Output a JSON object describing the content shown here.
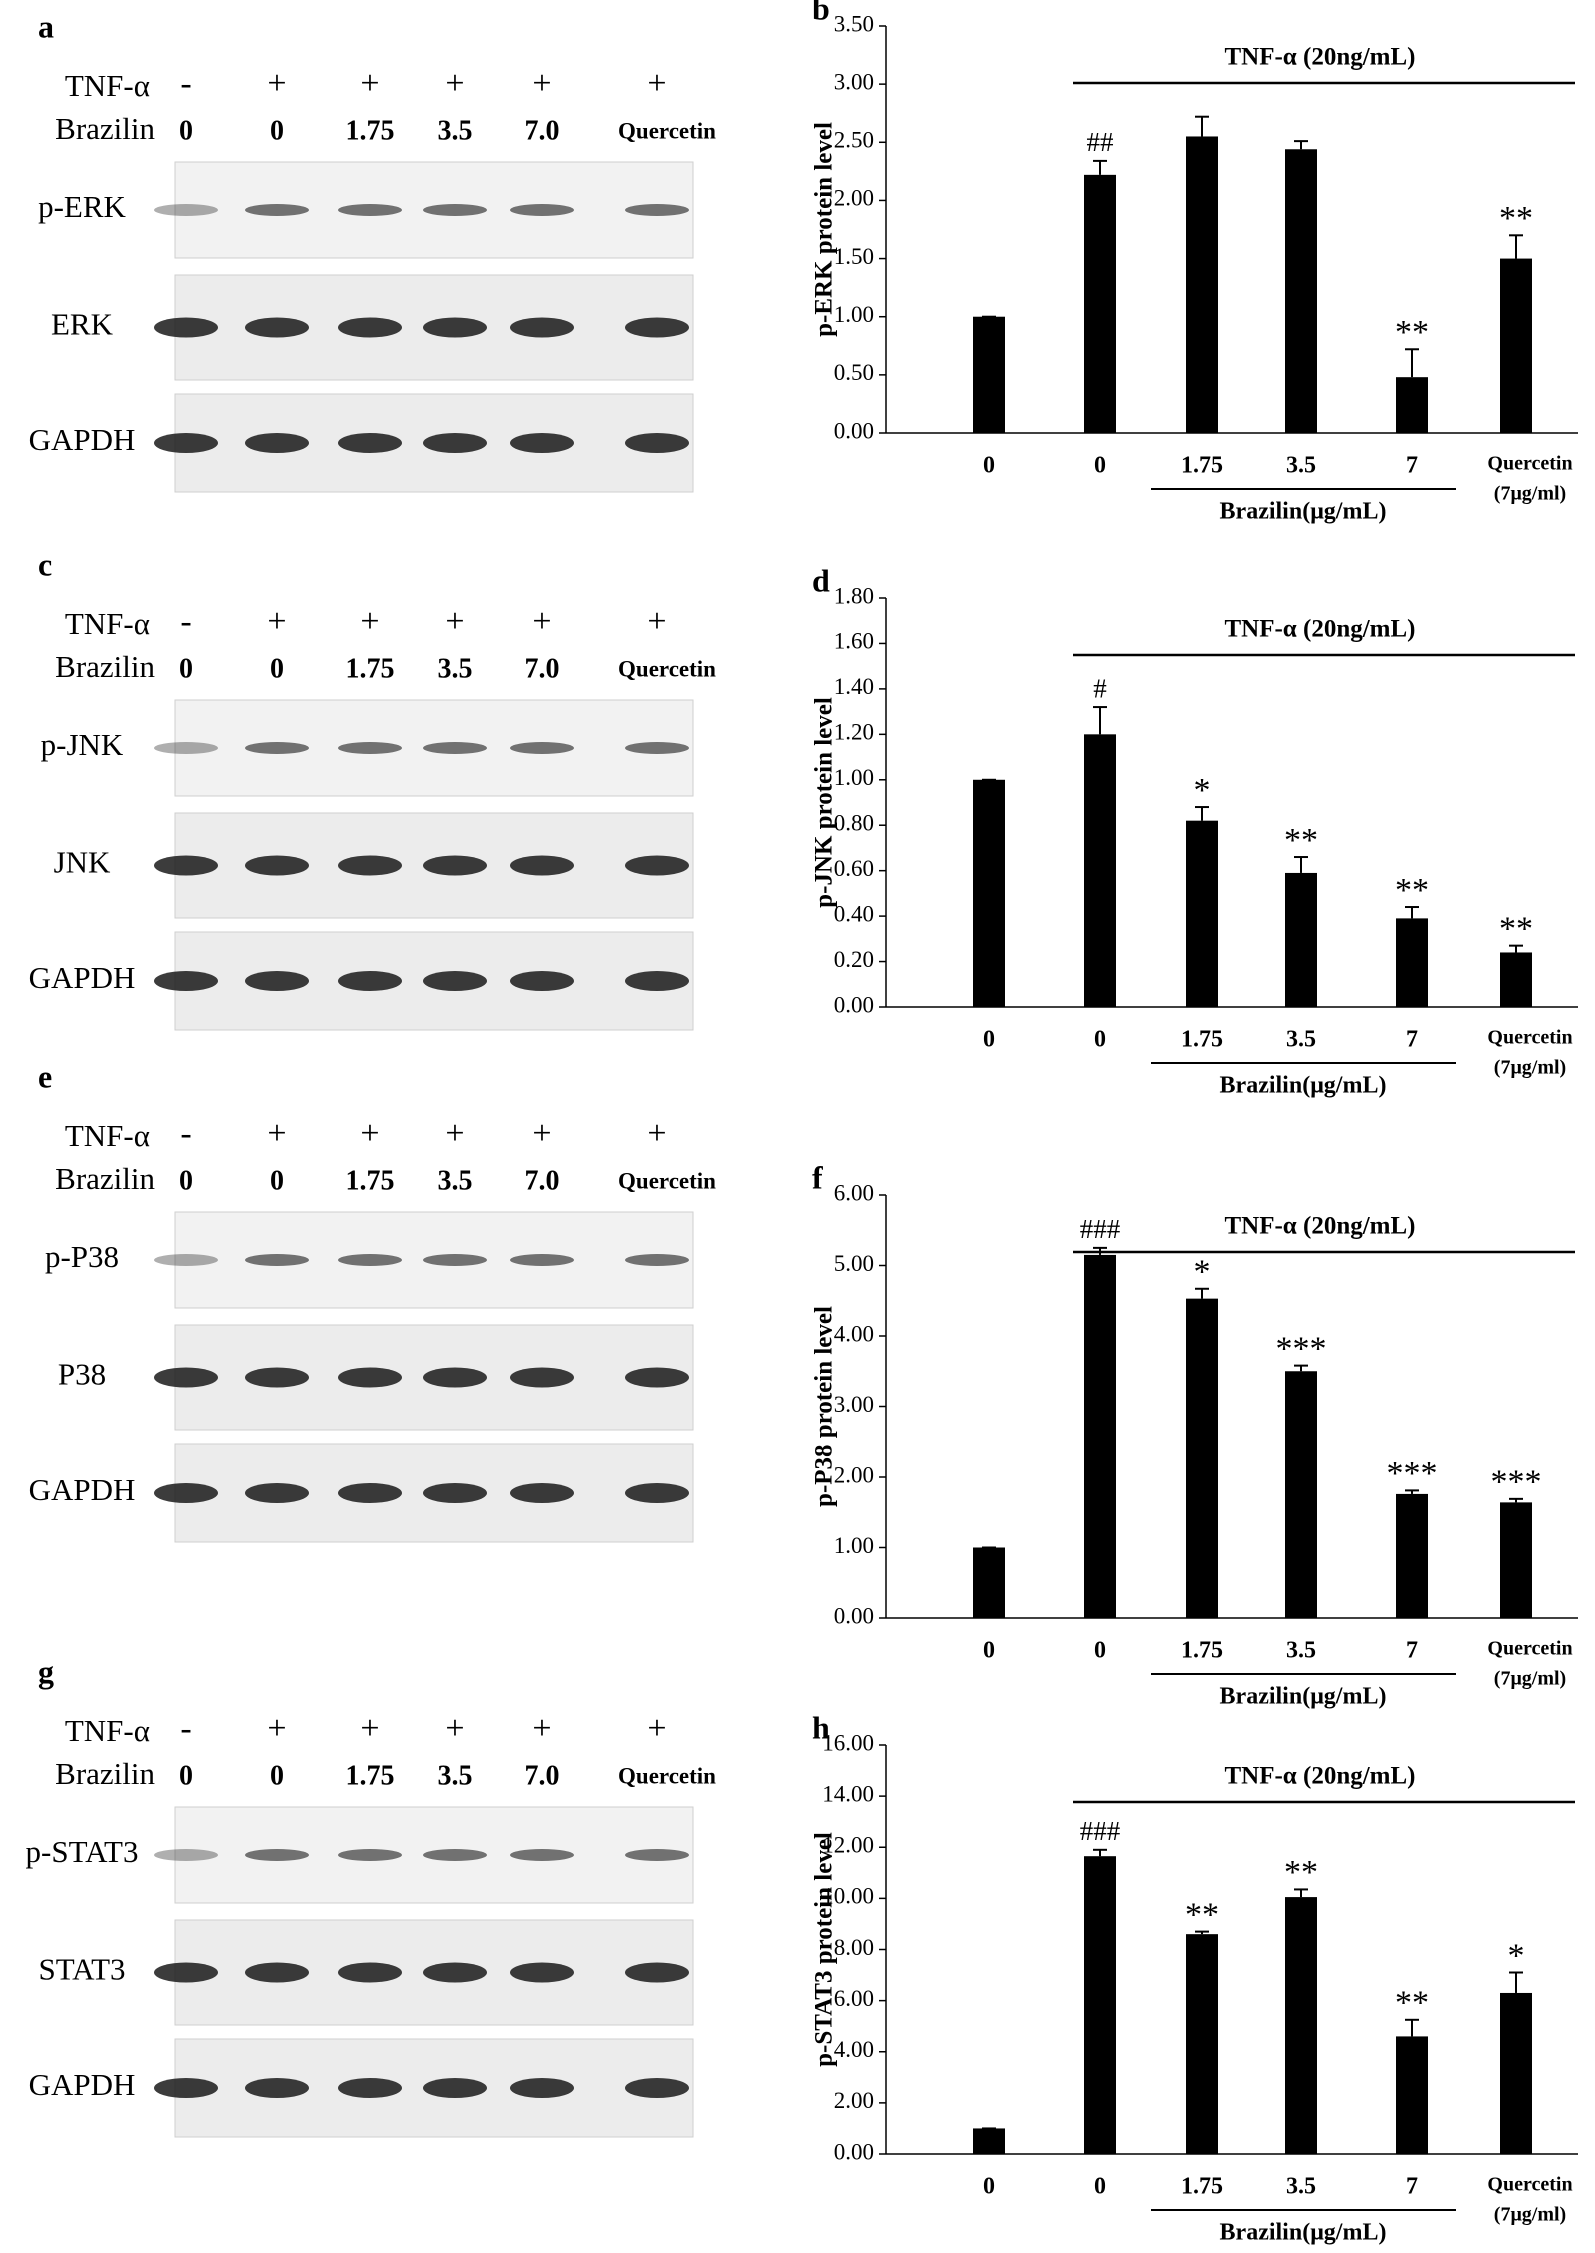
{
  "blots": [
    {
      "panel": "a",
      "treatment": "TNF-α",
      "signs": [
        "-",
        "+",
        "+",
        "+",
        "+",
        "+"
      ],
      "dose_label": "Brazilin",
      "doses": [
        "0",
        "0",
        "1.75",
        "3.5",
        "7.0",
        "Quercetin"
      ],
      "bands": [
        "p-ERK",
        "ERK",
        "GAPDH"
      ]
    },
    {
      "panel": "c",
      "treatment": "TNF-α",
      "signs": [
        "-",
        "+",
        "+",
        "+",
        "+",
        "+"
      ],
      "dose_label": "Brazilin",
      "doses": [
        "0",
        "0",
        "1.75",
        "3.5",
        "7.0",
        "Quercetin"
      ],
      "bands": [
        "p-JNK",
        "JNK",
        "GAPDH"
      ]
    },
    {
      "panel": "e",
      "treatment": "TNF-α",
      "signs": [
        "-",
        "+",
        "+",
        "+",
        "+",
        "+"
      ],
      "dose_label": "Brazilin",
      "doses": [
        "0",
        "0",
        "1.75",
        "3.5",
        "7.0",
        "Quercetin"
      ],
      "bands": [
        "p-P38",
        "P38",
        "GAPDH"
      ]
    },
    {
      "panel": "g",
      "treatment": "TNF-α",
      "signs": [
        "-",
        "+",
        "+",
        "+",
        "+",
        "+"
      ],
      "dose_label": "Brazilin",
      "doses": [
        "0",
        "0",
        "1.75",
        "3.5",
        "7.0",
        "Quercetin"
      ],
      "bands": [
        "p-STAT3",
        "STAT3",
        "GAPDH"
      ]
    }
  ],
  "chart_data": [
    {
      "type": "bar",
      "panel": "b",
      "ylabel": "p-ERK protein level",
      "treatment_label": "TNF-α (20ng/mL)",
      "bracket_label": "Brazilin(μg/mL)",
      "categories": [
        "0",
        "0",
        "1.75",
        "3.5",
        "7",
        "Quercetin"
      ],
      "category_sublabel": "(7μg/ml)",
      "color": "#000000",
      "values": [
        1.0,
        2.22,
        2.55,
        2.44,
        0.48,
        1.5
      ],
      "errors": [
        0,
        0.12,
        0.17,
        0.07,
        0.24,
        0.2
      ],
      "annotations": [
        null,
        "##",
        null,
        null,
        "**",
        "**"
      ],
      "ylim": [
        0,
        3.5
      ],
      "yticks": [
        {
          "value": 0,
          "label": "0.00"
        },
        {
          "value": 0.5,
          "label": "0.50"
        },
        {
          "value": 1,
          "label": "1.00"
        },
        {
          "value": 1.5,
          "label": "1.50"
        },
        {
          "value": 2,
          "label": "2.00"
        },
        {
          "value": 2.5,
          "label": "2.50"
        },
        {
          "value": 3,
          "label": "3.00"
        },
        {
          "value": 3.5,
          "label": "3.50"
        }
      ]
    },
    {
      "type": "bar",
      "panel": "d",
      "ylabel": "p-JNK protein level",
      "treatment_label": "TNF-α (20ng/mL)",
      "bracket_label": "Brazilin(μg/mL)",
      "categories": [
        "0",
        "0",
        "1.75",
        "3.5",
        "7",
        "Quercetin"
      ],
      "category_sublabel": "(7μg/ml)",
      "color": "#000000",
      "values": [
        1.0,
        1.2,
        0.82,
        0.59,
        0.39,
        0.24
      ],
      "errors": [
        0,
        0.12,
        0.06,
        0.07,
        0.05,
        0.03
      ],
      "annotations": [
        null,
        "#",
        "*",
        "**",
        "**",
        "**"
      ],
      "ylim": [
        0,
        1.8
      ],
      "yticks": [
        {
          "value": 0,
          "label": "0.00"
        },
        {
          "value": 0.2,
          "label": "0.20"
        },
        {
          "value": 0.4,
          "label": "0.40"
        },
        {
          "value": 0.6,
          "label": "0.60"
        },
        {
          "value": 0.8,
          "label": "0.80"
        },
        {
          "value": 1,
          "label": "1.00"
        },
        {
          "value": 1.2,
          "label": "1.20"
        },
        {
          "value": 1.4,
          "label": "1.40"
        },
        {
          "value": 1.6,
          "label": "1.60"
        },
        {
          "value": 1.8,
          "label": "1.80"
        }
      ]
    },
    {
      "type": "bar",
      "panel": "f",
      "ylabel": "p-P38 protein level",
      "treatment_label": "TNF-α (20ng/mL)",
      "bracket_label": "Brazilin(μg/mL)",
      "categories": [
        "0",
        "0",
        "1.75",
        "3.5",
        "7",
        "Quercetin"
      ],
      "category_sublabel": "(7μg/ml)",
      "color": "#000000",
      "values": [
        1.0,
        5.15,
        4.53,
        3.5,
        1.76,
        1.64
      ],
      "errors": [
        0,
        0.1,
        0.14,
        0.08,
        0.05,
        0.05
      ],
      "annotations": [
        null,
        "###",
        "*",
        "***",
        "***",
        "***"
      ],
      "ylim": [
        0,
        6
      ],
      "yticks": [
        {
          "value": 0,
          "label": "0.00"
        },
        {
          "value": 1,
          "label": "1.00"
        },
        {
          "value": 2,
          "label": "2.00"
        },
        {
          "value": 3,
          "label": "3.00"
        },
        {
          "value": 4,
          "label": "4.00"
        },
        {
          "value": 5,
          "label": "5.00"
        },
        {
          "value": 6,
          "label": "6.00"
        }
      ]
    },
    {
      "type": "bar",
      "panel": "h",
      "ylabel": "p-STAT3 protein level",
      "treatment_label": "TNF-α (20ng/mL)",
      "bracket_label": "Brazilin(μg/mL)",
      "categories": [
        "0",
        "0",
        "1.75",
        "3.5",
        "7",
        "Quercetin"
      ],
      "category_sublabel": "(7μg/ml)",
      "color": "#000000",
      "values": [
        1.0,
        11.65,
        8.6,
        10.05,
        4.6,
        6.3
      ],
      "errors": [
        0,
        0.25,
        0.1,
        0.3,
        0.65,
        0.8
      ],
      "annotations": [
        null,
        "###",
        "**",
        "**",
        "**",
        "*"
      ],
      "ylim": [
        0,
        16
      ],
      "yticks": [
        {
          "value": 0,
          "label": "0.00"
        },
        {
          "value": 2,
          "label": "2.00"
        },
        {
          "value": 4,
          "label": "4.00"
        },
        {
          "value": 6,
          "label": "6.00"
        },
        {
          "value": 8,
          "label": "8.00"
        },
        {
          "value": 10,
          "label": "10.00"
        },
        {
          "value": 12,
          "label": "12.00"
        },
        {
          "value": 14,
          "label": "14.00"
        },
        {
          "value": 16,
          "label": "16.00"
        }
      ]
    }
  ]
}
